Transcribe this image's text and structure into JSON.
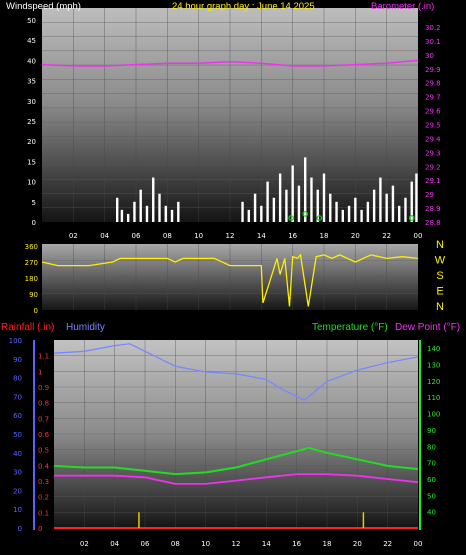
{
  "title": "24 hour graph day : June 14 2025",
  "colors": {
    "background": "#000000",
    "wind": "#ffffff",
    "gust": "#00dd00",
    "barometer": "#ee33ee",
    "direction": "#ffee00",
    "rain": "#ff2222",
    "humidity": "#7788ff",
    "temperature": "#22dd22",
    "dewpoint": "#ee33ee",
    "rainAxis": "#ff3333",
    "humAxis": "#5566ff",
    "tempAxis": "#22ee22"
  },
  "hour_labels": [
    "02",
    "04",
    "06",
    "08",
    "10",
    "12",
    "14",
    "16",
    "18",
    "20",
    "22",
    "00"
  ],
  "chart_data": [
    {
      "type": "area",
      "left_axis_label": "Windspeed (mph)",
      "right_axis_label": "Barometer (.in)",
      "wind_ticks": [
        "0",
        "5",
        "10",
        "15",
        "20",
        "25",
        "30",
        "35",
        "40",
        "45",
        "50"
      ],
      "baro_ticks": [
        "28.8",
        "28.9",
        "29",
        "29.1",
        "29.2",
        "29.3",
        "29.4",
        "29.5",
        "29.6",
        "29.7",
        "29.8",
        "29.9",
        "30",
        "30.1",
        "30.2"
      ],
      "wind_ylim": [
        0,
        50
      ],
      "baro_ylim": [
        28.8,
        30.25
      ],
      "x_hours": [
        0,
        24
      ],
      "barometer": {
        "x": [
          0,
          2,
          4,
          6,
          8,
          10,
          12,
          14,
          16,
          18,
          20,
          22,
          24
        ],
        "y": [
          29.93,
          29.92,
          29.92,
          29.93,
          29.94,
          29.94,
          29.95,
          29.94,
          29.92,
          29.92,
          29.93,
          29.94,
          29.96
        ]
      },
      "wind_bursts": {
        "x": [
          4.8,
          5.1,
          5.5,
          5.9,
          6.3,
          6.7,
          7.1,
          7.5,
          7.9,
          8.3,
          8.7,
          12.8,
          13.2,
          13.6,
          14.0,
          14.4,
          14.8,
          15.2,
          15.6,
          16.0,
          16.4,
          16.8,
          17.2,
          17.6,
          18.0,
          18.4,
          18.8,
          19.2,
          19.6,
          20.0,
          20.4,
          20.8,
          21.2,
          21.6,
          22.0,
          22.4,
          22.8,
          23.2,
          23.6,
          23.9
        ],
        "y": [
          6,
          3,
          2,
          5,
          8,
          4,
          11,
          7,
          4,
          3,
          5,
          5,
          3,
          7,
          4,
          10,
          6,
          12,
          8,
          14,
          9,
          16,
          11,
          8,
          12,
          7,
          5,
          3,
          4,
          6,
          3,
          5,
          8,
          11,
          7,
          9,
          4,
          6,
          10,
          12
        ]
      },
      "gust_marks": {
        "x": [
          15.9,
          16.8,
          17.7,
          23.6
        ],
        "y": [
          1,
          2,
          1,
          1
        ]
      }
    },
    {
      "type": "line",
      "right_axis_label": "N W S E N",
      "dir_ticks": [
        "360",
        "270",
        "180",
        "90",
        "0"
      ],
      "dir_ylim": [
        0,
        360
      ],
      "direction": {
        "x": [
          0,
          1,
          3,
          4.5,
          5,
          8,
          8.5,
          9,
          11,
          12,
          12.5,
          14,
          14.1,
          14.5,
          15,
          15.2,
          15.5,
          15.8,
          16,
          16.3,
          16.5,
          17,
          17.5,
          18,
          18.5,
          19,
          20,
          21,
          22,
          23,
          24
        ],
        "y": [
          270,
          250,
          250,
          270,
          290,
          290,
          270,
          290,
          290,
          250,
          250,
          250,
          40,
          150,
          290,
          200,
          290,
          20,
          300,
          290,
          310,
          20,
          300,
          310,
          290,
          310,
          270,
          310,
          290,
          300,
          290
        ]
      }
    },
    {
      "type": "line",
      "rain_label": "Rainfall (.in)",
      "humidity_label": "Humidity",
      "temperature_label": "Temperature (°F)",
      "dewpoint_label": "Dew Point (°F)",
      "rain_ticks": [
        "0",
        "0.1",
        "0.2",
        "0.3",
        "0.4",
        "0.5",
        "0.6",
        "0.7",
        "0.8",
        "0.9",
        "1",
        "1.1"
      ],
      "hum_ticks": [
        "0",
        "10",
        "20",
        "30",
        "40",
        "50",
        "60",
        "70",
        "80",
        "90",
        "100"
      ],
      "temp_ticks": [
        "40",
        "50",
        "60",
        "70",
        "80",
        "90",
        "100",
        "110",
        "120",
        "130",
        "140"
      ],
      "hum_ylim": [
        0,
        100
      ],
      "temp_ylim": [
        30,
        145
      ],
      "rain_ylim": [
        0,
        1.2
      ],
      "humidity": {
        "x": [
          0,
          2,
          4,
          5,
          6,
          8,
          10,
          12,
          14,
          15,
          16.5,
          18,
          20,
          22,
          24
        ],
        "y": [
          93,
          94,
          97,
          98,
          94,
          86,
          83,
          82,
          79,
          74,
          68,
          78,
          84,
          88,
          91
        ]
      },
      "temperature": {
        "x": [
          0,
          2,
          4,
          6,
          8,
          10,
          12,
          14,
          16,
          16.8,
          18,
          20,
          22,
          24
        ],
        "y": [
          68,
          67,
          67,
          65,
          63,
          64,
          67,
          72,
          77,
          79,
          76,
          72,
          68,
          66
        ]
      },
      "dewpoint": {
        "x": [
          0,
          2,
          4,
          6,
          7,
          8,
          10,
          12,
          14,
          16,
          18,
          20,
          22,
          24
        ],
        "y": [
          62,
          62,
          62,
          61,
          59,
          57,
          57,
          59,
          61,
          63,
          63,
          62,
          60,
          58
        ]
      },
      "rain": {
        "x": [
          0,
          24
        ],
        "y": [
          0,
          0
        ]
      },
      "rain_marks": {
        "x": [
          5.6,
          20.4
        ],
        "y": [
          0.1,
          0.1
        ]
      }
    }
  ]
}
